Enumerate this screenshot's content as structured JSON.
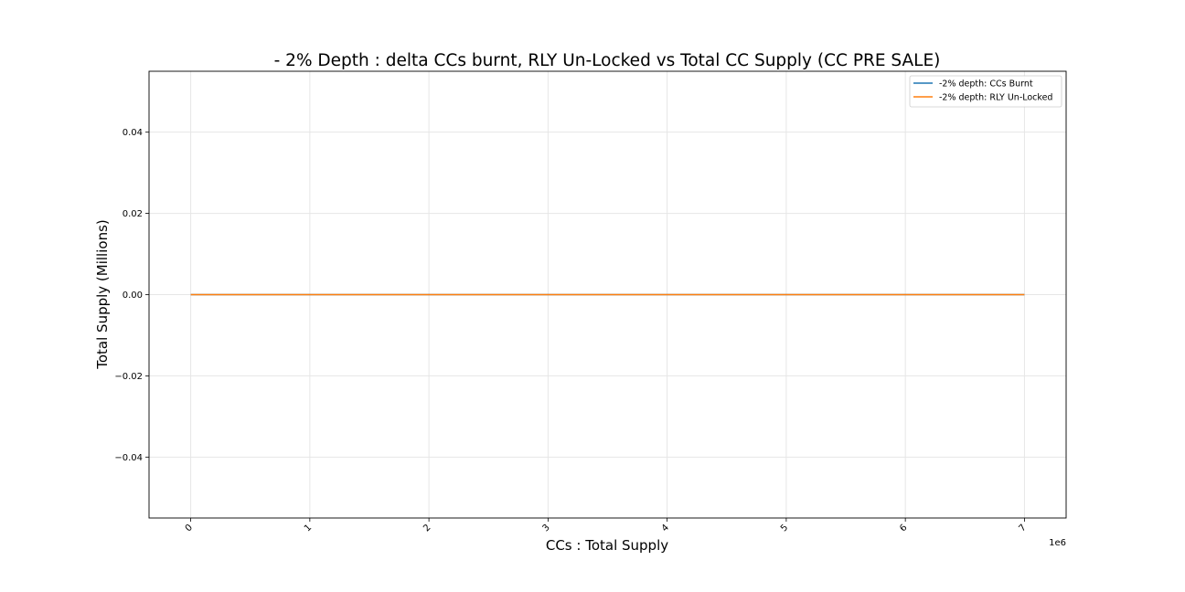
{
  "chart_data": {
    "type": "line",
    "title": "- 2% Depth : delta CCs burnt, RLY Un-Locked vs Total CC Supply (CC PRE SALE)",
    "xlabel": "CCs : Total Supply",
    "ylabel": "Total Supply (Millions)",
    "x_offset_text": "1e6",
    "xlim": [
      -0.35,
      7.35
    ],
    "ylim": [
      -0.055,
      0.055
    ],
    "x_ticks": [
      0,
      1,
      2,
      3,
      4,
      5,
      6,
      7
    ],
    "x_tick_labels": [
      "0",
      "1",
      "2",
      "3",
      "4",
      "5",
      "6",
      "7"
    ],
    "y_ticks": [
      0.04,
      0.02,
      0.0,
      -0.02,
      -0.04
    ],
    "y_tick_labels": [
      "0.04",
      "0.02",
      "0.00",
      "−0.02",
      "−0.04"
    ],
    "grid": true,
    "legend_position": "top-right",
    "series": [
      {
        "name": "-2% depth: CCs Burnt",
        "color": "#1f77b4",
        "x": [
          0,
          1,
          2,
          3,
          4,
          5,
          6,
          7
        ],
        "y": [
          0,
          0,
          0,
          0,
          0,
          0,
          0,
          0
        ]
      },
      {
        "name": "-2% depth: RLY Un-Locked",
        "color": "#ff7f0e",
        "x": [
          0,
          1,
          2,
          3,
          4,
          5,
          6,
          7
        ],
        "y": [
          0,
          0,
          0,
          0,
          0,
          0,
          0,
          0
        ]
      }
    ]
  }
}
